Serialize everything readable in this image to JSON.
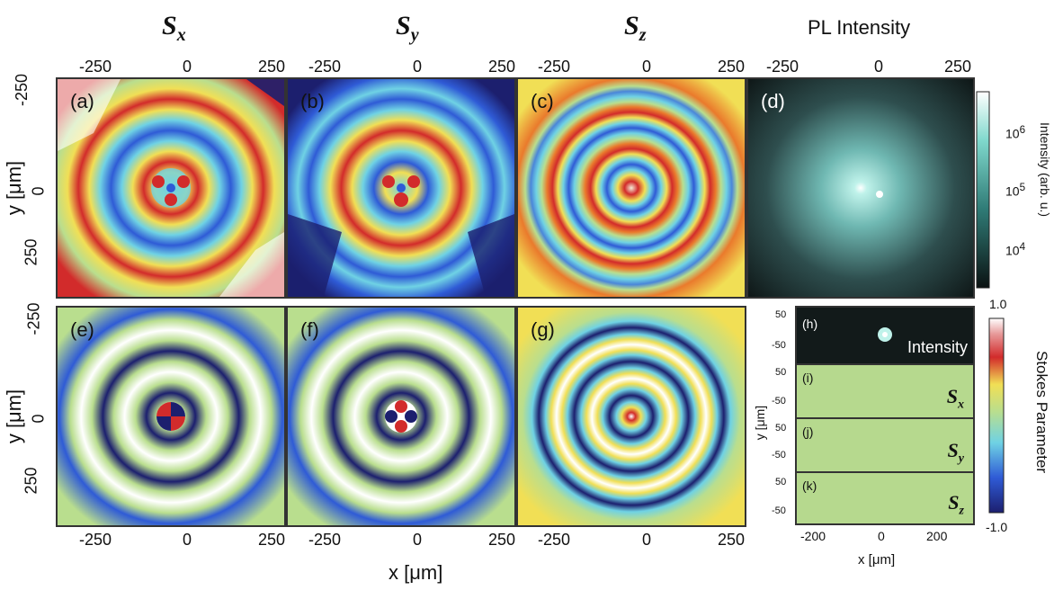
{
  "columns": [
    {
      "symbol": "S",
      "sub": "x"
    },
    {
      "symbol": "S",
      "sub": "y"
    },
    {
      "symbol": "S",
      "sub": "z"
    }
  ],
  "pl_title": "PL Intensity",
  "top_ticks": [
    "-250",
    "0",
    "250"
  ],
  "bottom_ticks": [
    "-250",
    "0",
    "250"
  ],
  "y_ticks": [
    "-250",
    "0",
    "250"
  ],
  "y_axis_label": "y [μm]",
  "x_axis_label": "x [μm]",
  "panels": [
    "(a)",
    "(b)",
    "(c)",
    "(d)",
    "(e)",
    "(f)",
    "(g)",
    "(h)",
    "(i)",
    "(j)",
    "(k)"
  ],
  "intensity_colorbar": {
    "title": "Intensity (arb. u.)",
    "ticks": [
      {
        "base": "10",
        "exp": "6"
      },
      {
        "base": "10",
        "exp": "5"
      },
      {
        "base": "10",
        "exp": "4"
      }
    ]
  },
  "stokes_colorbar": {
    "title": "Stokes Parameter",
    "max": "1.0",
    "min": "-1.0"
  },
  "small_panels": {
    "h_label": "Intensity",
    "y_ticks": [
      "50",
      "-50"
    ],
    "y_axis_label": "y [μm]",
    "x_axis_label": "x [μm]",
    "x_ticks": [
      "-200",
      "0",
      "200"
    ],
    "tags": [
      {
        "symbol": "S",
        "sub": "x"
      },
      {
        "symbol": "S",
        "sub": "y"
      },
      {
        "symbol": "S",
        "sub": "z"
      }
    ]
  },
  "colors": {
    "jet_dark": "#1c1f6e",
    "jet_blue": "#2f5bd6",
    "jet_cyan": "#6fd2e4",
    "jet_green": "#b9de8e",
    "jet_yellow": "#f1df55",
    "jet_orange": "#ea7a2c",
    "jet_red": "#d22b2b",
    "white": "#ffffff",
    "teal": "#6fd6c9",
    "dark": "#101616"
  }
}
